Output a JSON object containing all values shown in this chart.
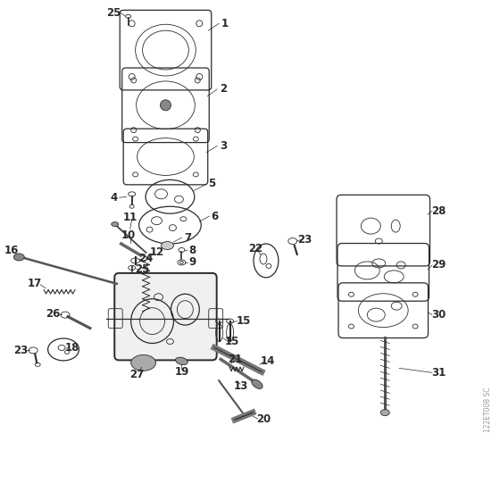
{
  "background_color": "#ffffff",
  "line_color": "#2a2a2a",
  "watermark": "122ET008 SC",
  "fig_w": 5.6,
  "fig_h": 5.6,
  "dpi": 100
}
